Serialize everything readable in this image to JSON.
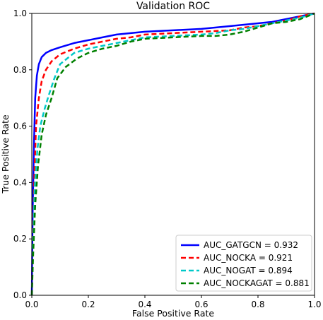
{
  "chart_data": {
    "type": "line",
    "title": "Validation ROC",
    "xlabel": "False Positive Rate",
    "ylabel": "True Positive Rate",
    "xlim": [
      0.0,
      1.0
    ],
    "ylim": [
      0.0,
      1.0
    ],
    "xticks": [
      "0.0",
      "0.2",
      "0.4",
      "0.6",
      "0.8",
      "1.0"
    ],
    "yticks": [
      "0.0",
      "0.2",
      "0.4",
      "0.6",
      "0.8",
      "1.0"
    ],
    "grid": false,
    "legend_position": "lower-right",
    "series": [
      {
        "name": "AUC_GATGCN = 0.932",
        "color": "#0000ff",
        "linestyle": "solid",
        "x": [
          0.0,
          0.003,
          0.008,
          0.012,
          0.018,
          0.025,
          0.035,
          0.05,
          0.07,
          0.1,
          0.15,
          0.2,
          0.25,
          0.3,
          0.35,
          0.4,
          0.5,
          0.6,
          0.7,
          0.75,
          0.8,
          0.85,
          0.9,
          0.95,
          1.0
        ],
        "y": [
          0.0,
          0.3,
          0.55,
          0.7,
          0.78,
          0.82,
          0.845,
          0.86,
          0.87,
          0.88,
          0.895,
          0.905,
          0.915,
          0.925,
          0.93,
          0.935,
          0.94,
          0.945,
          0.955,
          0.96,
          0.965,
          0.97,
          0.98,
          0.99,
          1.0
        ]
      },
      {
        "name": "AUC_NOCKA = 0.921",
        "color": "#ff0000",
        "linestyle": "dashed",
        "x": [
          0.0,
          0.005,
          0.01,
          0.015,
          0.025,
          0.035,
          0.05,
          0.07,
          0.1,
          0.15,
          0.2,
          0.25,
          0.3,
          0.35,
          0.4,
          0.5,
          0.6,
          0.7,
          0.75,
          0.8,
          0.85,
          0.9,
          0.95,
          1.0
        ],
        "y": [
          0.0,
          0.25,
          0.45,
          0.6,
          0.7,
          0.76,
          0.8,
          0.83,
          0.855,
          0.875,
          0.89,
          0.9,
          0.91,
          0.915,
          0.925,
          0.93,
          0.935,
          0.94,
          0.95,
          0.955,
          0.965,
          0.975,
          0.99,
          1.0
        ]
      },
      {
        "name": "AUC_NOGAT = 0.894",
        "color": "#00c8c8",
        "linestyle": "dashed",
        "x": [
          0.0,
          0.005,
          0.01,
          0.02,
          0.03,
          0.045,
          0.06,
          0.08,
          0.1,
          0.15,
          0.2,
          0.25,
          0.3,
          0.35,
          0.4,
          0.5,
          0.6,
          0.65,
          0.7,
          0.75,
          0.8,
          0.85,
          0.9,
          0.95,
          1.0
        ],
        "y": [
          0.0,
          0.2,
          0.38,
          0.52,
          0.6,
          0.66,
          0.71,
          0.77,
          0.82,
          0.86,
          0.875,
          0.885,
          0.895,
          0.905,
          0.915,
          0.92,
          0.925,
          0.93,
          0.94,
          0.945,
          0.955,
          0.965,
          0.975,
          0.985,
          1.0
        ]
      },
      {
        "name": "AUC_NOCKAGAT = 0.881",
        "color": "#008000",
        "linestyle": "dashed",
        "x": [
          0.0,
          0.005,
          0.012,
          0.022,
          0.035,
          0.05,
          0.07,
          0.09,
          0.12,
          0.16,
          0.2,
          0.25,
          0.3,
          0.35,
          0.4,
          0.5,
          0.6,
          0.65,
          0.7,
          0.75,
          0.8,
          0.85,
          0.9,
          0.95,
          1.0
        ],
        "y": [
          0.0,
          0.15,
          0.32,
          0.46,
          0.57,
          0.64,
          0.7,
          0.77,
          0.81,
          0.84,
          0.86,
          0.875,
          0.885,
          0.9,
          0.91,
          0.915,
          0.92,
          0.92,
          0.925,
          0.935,
          0.95,
          0.965,
          0.97,
          0.98,
          1.0
        ]
      }
    ]
  }
}
